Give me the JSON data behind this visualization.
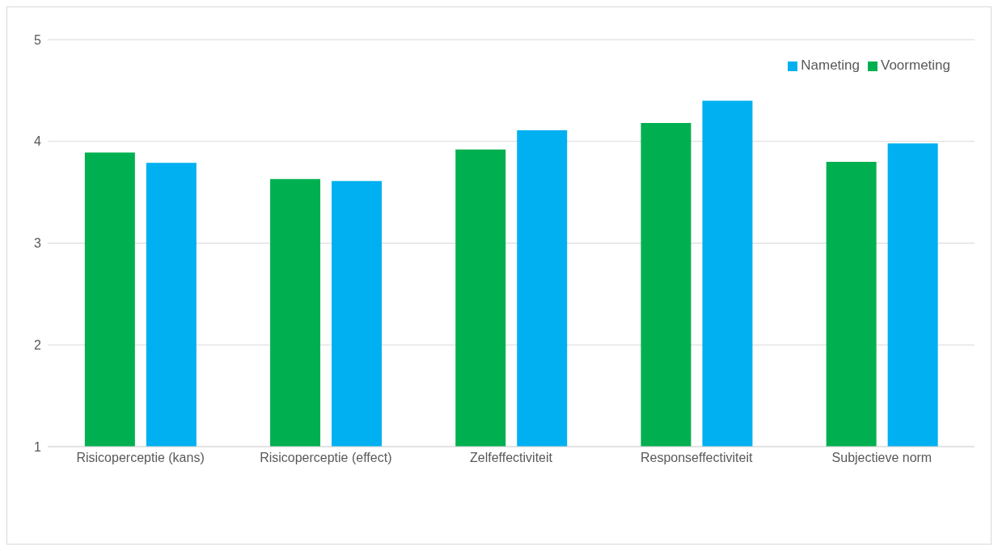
{
  "chart_data": {
    "type": "bar",
    "categories": [
      "Risicoperceptie (kans)",
      "Risicoperceptie (effect)",
      "Zelfeffectiviteit",
      "Responseffectiviteit",
      "Subjectieve norm"
    ],
    "series": [
      {
        "name": "Voormeting",
        "color": "#00b050",
        "values": [
          3.89,
          3.63,
          3.92,
          4.18,
          3.8
        ]
      },
      {
        "name": "Nameting",
        "color": "#00b0f0",
        "values": [
          3.79,
          3.61,
          4.11,
          4.4,
          3.98
        ]
      }
    ],
    "ylim": [
      1,
      5
    ],
    "yticks": [
      1,
      2,
      3,
      4,
      5
    ],
    "grid": "y",
    "legend": "top right"
  }
}
